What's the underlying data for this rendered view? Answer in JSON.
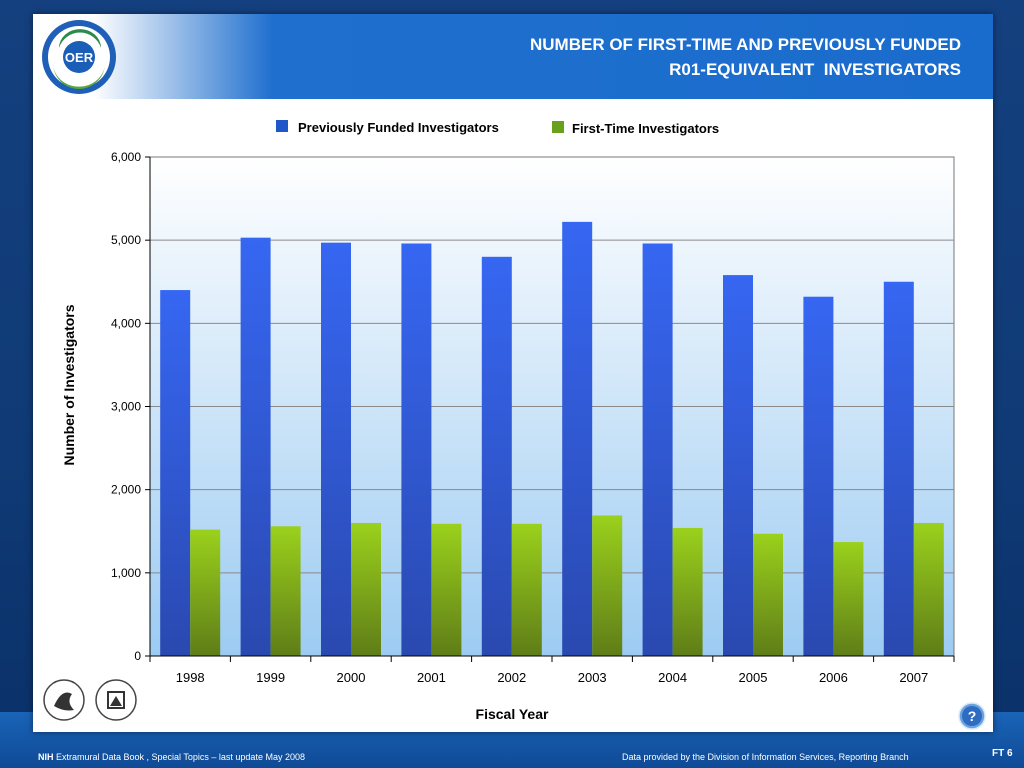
{
  "header": {
    "title_line1": "NUMBER OF FIRST-TIME AND PREVIOUSLY FUNDED",
    "title_line2": "R01-EQUIVALENT  INVESTIGATORS",
    "logo_text": "OER"
  },
  "footer": {
    "left_bold": "NIH",
    "left_text": " Extramural Data Book , Special Topics – last update May 2008",
    "right_text": "Data provided by the Division of Information Services, Reporting Branch",
    "slide_id": "FT 6"
  },
  "help_icon": "help-icon",
  "colors": {
    "previous": "#2d5fe0",
    "first_time": "#8cc21a",
    "header": "#1a6ccc"
  },
  "chart_data": {
    "type": "bar",
    "title": "",
    "xlabel": "Fiscal Year",
    "ylabel": "Number of Investigators",
    "categories": [
      "1998",
      "1999",
      "2000",
      "2001",
      "2002",
      "2003",
      "2004",
      "2005",
      "2006",
      "2007"
    ],
    "series": [
      {
        "name": "Previously Funded Investigators",
        "values": [
          4400,
          5030,
          4970,
          4960,
          4800,
          5220,
          4960,
          4580,
          4320,
          4500
        ]
      },
      {
        "name": "First-Time Investigators",
        "values": [
          1520,
          1560,
          1600,
          1590,
          1590,
          1690,
          1540,
          1470,
          1370,
          1600
        ]
      }
    ],
    "ylim": [
      0,
      6000
    ],
    "yticks": [
      "0",
      "1,000",
      "2,000",
      "3,000",
      "4,000",
      "5,000",
      "6,000"
    ],
    "legend_position": "top",
    "grid": true
  }
}
